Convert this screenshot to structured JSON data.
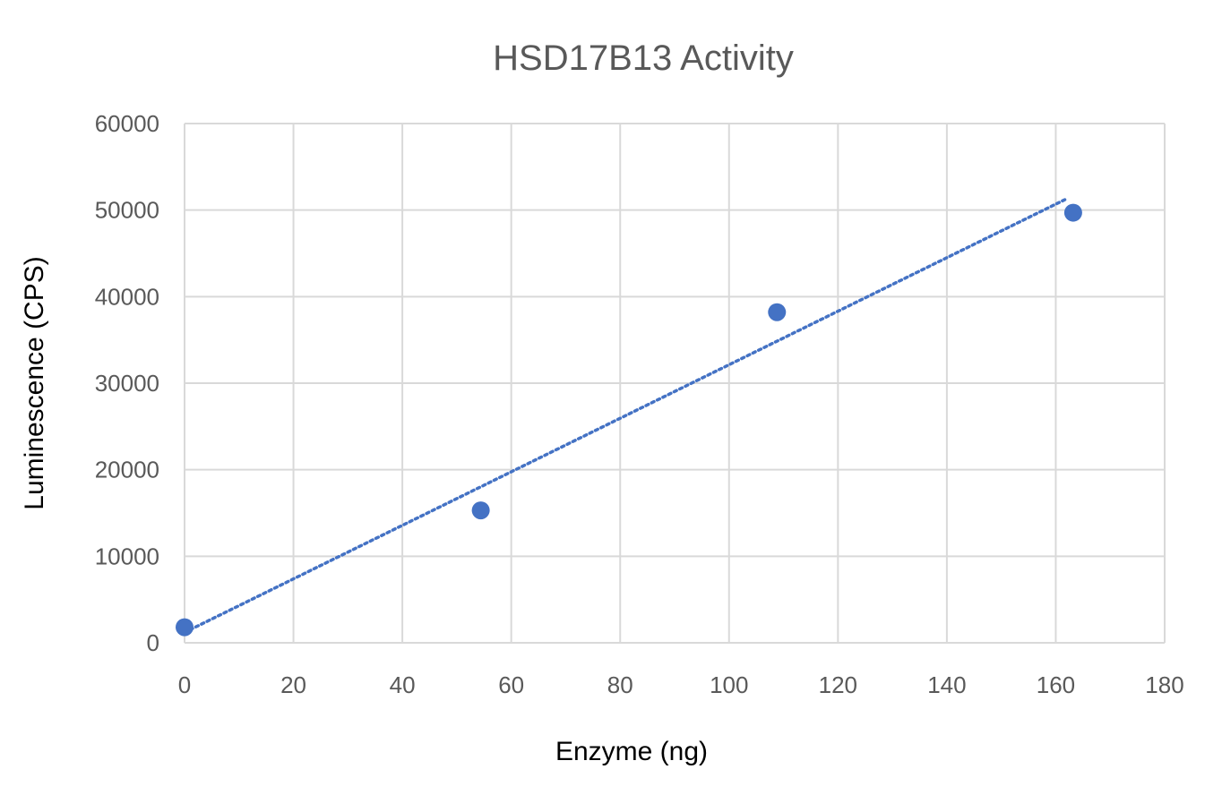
{
  "chart_data": {
    "type": "scatter",
    "title": "HSD17B13 Activity",
    "xlabel": "Enzyme (ng)",
    "ylabel": "Luminescence (CPS)",
    "xlim": [
      0,
      180
    ],
    "ylim": [
      0,
      60000
    ],
    "x_ticks": [
      0,
      20,
      40,
      60,
      80,
      100,
      120,
      140,
      160,
      180
    ],
    "y_ticks": [
      0,
      10000,
      20000,
      30000,
      40000,
      50000,
      60000
    ],
    "grid": true,
    "legend": "none",
    "series": [
      {
        "x": [
          0,
          54.4,
          108.8,
          163.2
        ],
        "y": [
          1800,
          15300,
          38200,
          49700
        ],
        "color": "#4472C4",
        "marker": "circle"
      }
    ],
    "trendline": {
      "type": "linear",
      "style": "dotted",
      "color": "#4472C4",
      "x_range": [
        0,
        162
      ],
      "slope": 309.3,
      "intercept": 1200
    }
  }
}
